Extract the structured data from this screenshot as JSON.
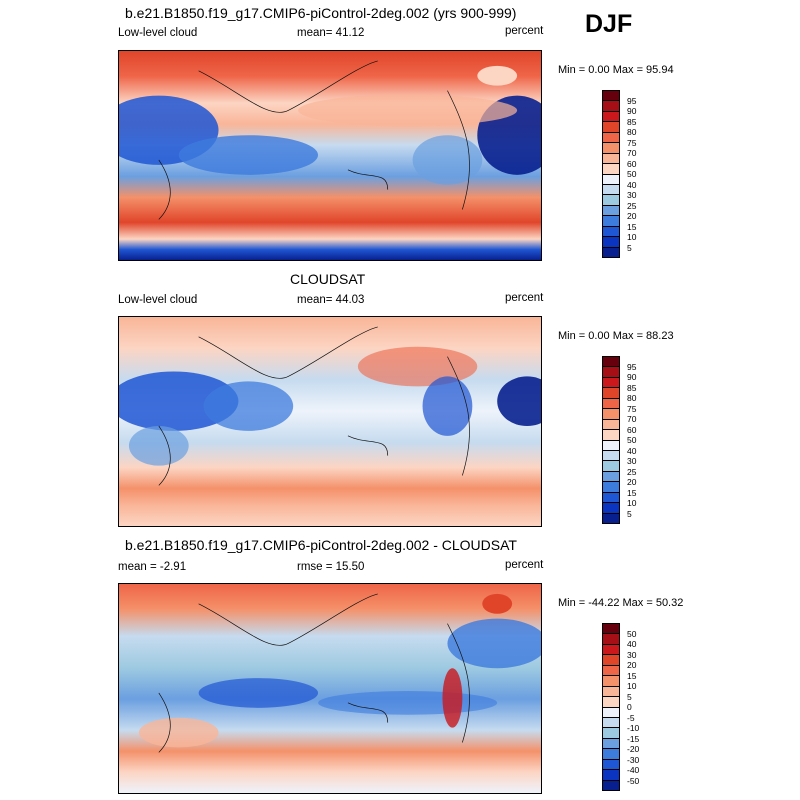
{
  "season": "DJF",
  "panels": [
    {
      "title": "b.e21.B1850.f19_g17.CMIP6-piControl-2deg.002 (yrs 900-999)",
      "left_label": "Low-level cloud",
      "center_label": "mean=  41.12",
      "right_label": "percent",
      "minmax": "Min =   0.00 Max =  95.94",
      "colorbar": {
        "colors": [
          "#67000d",
          "#a50f15",
          "#cb181d",
          "#e0452a",
          "#ef6548",
          "#f4916a",
          "#f9b598",
          "#fcd5c3",
          "#eef3fb",
          "#c6dbef",
          "#9ecae1",
          "#6b9fe0",
          "#3d7bdd",
          "#1f56d3",
          "#0b34c0",
          "#08208f"
        ],
        "ticks": [
          "95",
          "90",
          "85",
          "80",
          "75",
          "70",
          "60",
          "50",
          "40",
          "30",
          "25",
          "20",
          "15",
          "10",
          "5"
        ]
      }
    },
    {
      "title": "CLOUDSAT",
      "left_label": "Low-level cloud",
      "center_label": "mean=  44.03",
      "right_label": "percent",
      "minmax": "Min =   0.00 Max =  88.23",
      "colorbar": {
        "colors": [
          "#67000d",
          "#a50f15",
          "#cb181d",
          "#e0452a",
          "#ef6548",
          "#f4916a",
          "#f9b598",
          "#fcd5c3",
          "#eef3fb",
          "#c6dbef",
          "#9ecae1",
          "#6b9fe0",
          "#3d7bdd",
          "#1f56d3",
          "#0b34c0",
          "#08208f"
        ],
        "ticks": [
          "95",
          "90",
          "85",
          "80",
          "75",
          "70",
          "60",
          "50",
          "40",
          "30",
          "25",
          "20",
          "15",
          "10",
          "5"
        ]
      }
    },
    {
      "title": "b.e21.B1850.f19_g17.CMIP6-piControl-2deg.002 - CLOUDSAT",
      "left_label": "mean =  -2.91",
      "center_label": "rmse =  15.50",
      "right_label": "percent",
      "minmax": "Min = -44.22 Max =  50.32",
      "colorbar": {
        "colors": [
          "#67000d",
          "#a50f15",
          "#cb181d",
          "#e0452a",
          "#ef6548",
          "#f4916a",
          "#f9b598",
          "#fcd5c3",
          "#eef3fb",
          "#c6dbef",
          "#9ecae1",
          "#6b9fe0",
          "#3d7bdd",
          "#1f56d3",
          "#0b34c0",
          "#08208f"
        ],
        "ticks": [
          "50",
          "40",
          "30",
          "20",
          "15",
          "10",
          "5",
          "0",
          "-5",
          "-10",
          "-15",
          "-20",
          "-30",
          "-40",
          "-50"
        ]
      }
    }
  ]
}
